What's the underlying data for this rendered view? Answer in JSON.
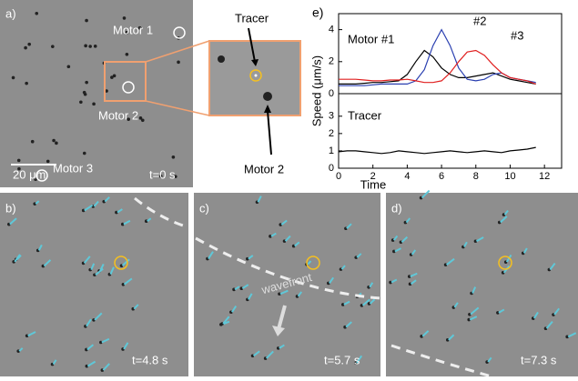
{
  "panels": {
    "a": {
      "label": "a)",
      "motor_1": "Motor 1",
      "motor_2": "Motor 2",
      "motor_3": "Motor 3",
      "scale": "20 μm",
      "time": "t=0 s"
    },
    "inset": {
      "tracer": "Tracer",
      "motor_2": "Motor 2"
    },
    "b": {
      "label": "b)",
      "time": "t=4.8 s"
    },
    "c": {
      "label": "c)",
      "time": "t=5.7 s",
      "wavefront": "wavefront"
    },
    "d": {
      "label": "d)",
      "time": "t=7.3 s"
    },
    "e": {
      "label": "e)"
    }
  },
  "chart_data": [
    {
      "type": "line",
      "ylabel": "Speed (μm/s)",
      "annotations": [
        "Motor #1",
        "#2",
        "#3"
      ],
      "x": [
        0,
        0.5,
        1,
        1.5,
        2,
        2.5,
        3,
        3.5,
        4,
        4.5,
        5,
        5.5,
        6,
        6.5,
        7,
        7.5,
        8,
        8.5,
        9,
        9.5,
        10,
        10.5,
        11,
        11.5
      ],
      "xlim": [
        0,
        13
      ],
      "ylim": [
        0,
        5
      ],
      "yticks": [
        0,
        2,
        4
      ],
      "series": [
        {
          "color": "#000000",
          "values": [
            0.6,
            0.6,
            0.6,
            0.65,
            0.7,
            0.7,
            0.75,
            0.8,
            1.2,
            2.0,
            2.7,
            2.3,
            1.6,
            1.2,
            1.0,
            1.0,
            1.1,
            1.2,
            1.3,
            1.1,
            0.9,
            0.8,
            0.7,
            0.6
          ]
        },
        {
          "color": "#2a3fb0",
          "values": [
            0.5,
            0.5,
            0.5,
            0.5,
            0.55,
            0.6,
            0.6,
            0.6,
            0.6,
            0.8,
            1.5,
            3.0,
            4.0,
            3.0,
            1.6,
            0.9,
            0.8,
            0.9,
            1.2,
            1.3,
            1.0,
            0.9,
            0.8,
            0.7
          ]
        },
        {
          "color": "#e02020",
          "values": [
            0.9,
            0.9,
            0.9,
            0.85,
            0.8,
            0.8,
            0.85,
            0.85,
            0.9,
            0.8,
            0.7,
            0.7,
            0.8,
            1.3,
            2.0,
            2.6,
            2.7,
            2.4,
            1.8,
            1.3,
            1.0,
            0.9,
            0.8,
            0.6
          ]
        }
      ]
    },
    {
      "type": "line",
      "xlabel": "Time",
      "annotations": [
        "Tracer"
      ],
      "x": [
        0,
        0.5,
        1,
        1.5,
        2,
        2.5,
        3,
        3.5,
        4,
        4.5,
        5,
        5.5,
        6,
        6.5,
        7,
        7.5,
        8,
        8.5,
        9,
        9.5,
        10,
        10.5,
        11,
        11.5
      ],
      "xlim": [
        0,
        13
      ],
      "xticks": [
        0,
        2,
        4,
        6,
        8,
        10,
        12
      ],
      "ylim": [
        0,
        4.3
      ],
      "yticks": [
        0,
        1,
        2,
        3
      ],
      "series": [
        {
          "color": "#000000",
          "values": [
            0.95,
            1.0,
            1.0,
            0.95,
            0.9,
            0.85,
            0.9,
            1.0,
            0.95,
            0.9,
            0.85,
            0.9,
            0.95,
            1.0,
            0.95,
            0.9,
            0.95,
            1.0,
            0.95,
            0.9,
            1.0,
            1.05,
            1.1,
            1.2
          ]
        }
      ]
    }
  ]
}
